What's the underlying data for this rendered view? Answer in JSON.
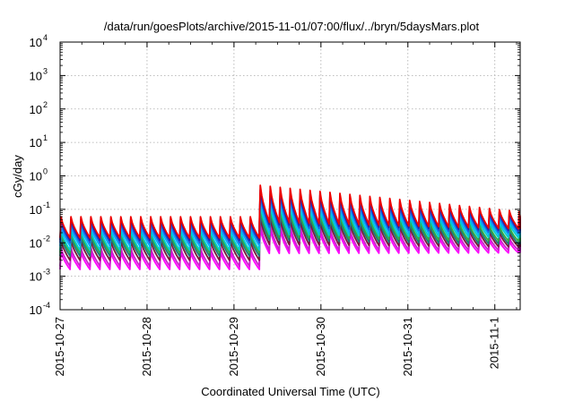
{
  "chart_data": {
    "type": "line",
    "title": "/data/run/goesPlots/archive/2015-11-01/07:00/flux/../bryn/5daysMars.plot",
    "xlabel": "Coordinated Universal Time (UTC)",
    "ylabel": "cGy/day",
    "y_scale": "log",
    "ylim": [
      0.0001,
      10000
    ],
    "xlim": [
      "2015-10-27T00:00",
      "2015-11-01T07:00"
    ],
    "grid": true,
    "legend": "none",
    "x_ticks": [
      "2015-10-27",
      "2015-10-28",
      "2015-10-29",
      "2015-10-30",
      "2015-10-31",
      "2015-11-1"
    ],
    "y_ticks": [
      {
        "base": "10",
        "exp": "-4"
      },
      {
        "base": "10",
        "exp": "-3"
      },
      {
        "base": "10",
        "exp": "-2"
      },
      {
        "base": "10",
        "exp": "-1"
      },
      {
        "base": "10",
        "exp": "0"
      },
      {
        "base": "10",
        "exp": "1"
      },
      {
        "base": "10",
        "exp": "2"
      },
      {
        "base": "10",
        "exp": "3"
      },
      {
        "base": "10",
        "exp": "4"
      }
    ],
    "cycle_hours": 2.75,
    "event_start": "2015-10-29T05:00",
    "series": [
      {
        "color": "#ff00ff",
        "peak_before": 0.0055,
        "trough_before": 0.0016,
        "peak_event": 0.028,
        "peak_end": 0.011,
        "trough_end": 0.005
      },
      {
        "color": "#cc22cc",
        "peak_before": 0.0075,
        "trough_before": 0.002,
        "peak_event": 0.04,
        "peak_end": 0.014,
        "trough_end": 0.006
      },
      {
        "color": "#7a1a3a",
        "peak_before": 0.012,
        "trough_before": 0.003,
        "peak_event": 0.06,
        "peak_end": 0.02,
        "trough_end": 0.0075
      },
      {
        "color": "#1a7a7a",
        "peak_before": 0.016,
        "trough_before": 0.004,
        "peak_event": 0.085,
        "peak_end": 0.025,
        "trough_end": 0.009
      },
      {
        "color": "#33aa44",
        "peak_before": 0.02,
        "trough_before": 0.005,
        "peak_event": 0.11,
        "peak_end": 0.03,
        "trough_end": 0.011
      },
      {
        "color": "#00cccc",
        "peak_before": 0.025,
        "trough_before": 0.006,
        "peak_event": 0.15,
        "peak_end": 0.04,
        "trough_end": 0.014
      },
      {
        "color": "#00aaff",
        "peak_before": 0.033,
        "trough_before": 0.008,
        "peak_event": 0.22,
        "peak_end": 0.05,
        "trough_end": 0.017
      },
      {
        "color": "#1e5adc",
        "peak_before": 0.043,
        "trough_before": 0.01,
        "peak_event": 0.32,
        "peak_end": 0.065,
        "trough_end": 0.02
      },
      {
        "color": "#2222aa",
        "peak_before": 0.052,
        "trough_before": 0.012,
        "peak_event": 0.4,
        "peak_end": 0.075,
        "trough_end": 0.023
      },
      {
        "color": "#ee0000",
        "peak_before": 0.06,
        "trough_before": 0.014,
        "peak_event": 0.55,
        "peak_end": 0.085,
        "trough_end": 0.026
      }
    ]
  }
}
